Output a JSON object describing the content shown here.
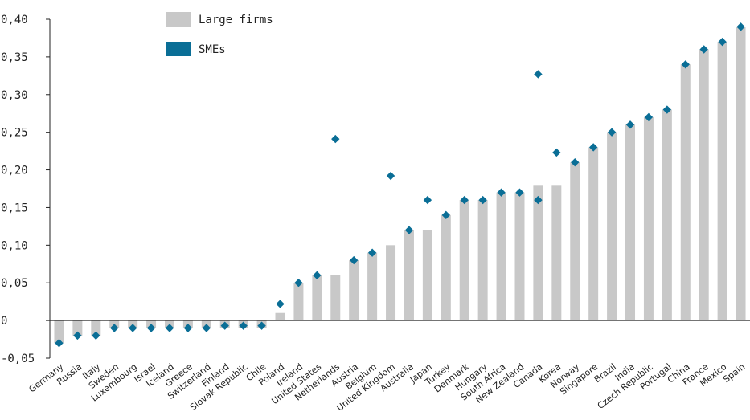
{
  "chart_data": {
    "type": "bar",
    "categories": [
      "Germany",
      "Russia",
      "Italy",
      "Sweden",
      "Luxembourg",
      "Israel",
      "Iceland",
      "Greece",
      "Switzerland",
      "Finland",
      "Slovak Republic",
      "Chile",
      "Poland",
      "Ireland",
      "United States",
      "Netherlands",
      "Austria",
      "Belgium",
      "United Kingdom",
      "Australia",
      "Japan",
      "Turkey",
      "Denmark",
      "Hungary",
      "South Africa",
      "New Zealand",
      "Canada",
      "Korea",
      "Norway",
      "Singapore",
      "Brazil",
      "India",
      "Czech Republic",
      "Portugal",
      "China",
      "France",
      "Mexico",
      "Spain"
    ],
    "series": [
      {
        "name": "Large firms",
        "mark": "bar",
        "color": "#c8c8c8",
        "values": [
          -0.03,
          -0.02,
          -0.02,
          -0.01,
          -0.01,
          -0.01,
          -0.01,
          -0.01,
          -0.01,
          -0.01,
          -0.01,
          -0.01,
          0.01,
          0.05,
          0.06,
          0.06,
          0.08,
          0.09,
          0.1,
          0.12,
          0.12,
          0.14,
          0.16,
          0.16,
          0.17,
          0.17,
          0.18,
          0.18,
          0.21,
          0.23,
          0.25,
          0.26,
          0.27,
          0.28,
          0.34,
          0.36,
          0.37,
          0.39
        ]
      },
      {
        "name": "SMEs",
        "mark": "diamond",
        "color": "#0a6e96",
        "values": [
          -0.03,
          -0.02,
          -0.02,
          -0.01,
          -0.01,
          -0.01,
          -0.01,
          -0.01,
          -0.01,
          -0.007,
          -0.007,
          -0.007,
          0.022,
          0.05,
          0.06,
          0.241,
          0.08,
          0.09,
          0.192,
          0.12,
          0.16,
          0.14,
          0.16,
          0.16,
          0.17,
          0.17,
          0.327,
          0.223,
          0.21,
          0.23,
          0.25,
          0.26,
          0.27,
          0.28,
          0.34,
          0.36,
          0.37,
          0.39
        ]
      }
    ],
    "extra_canada_sme_marker": 0.16,
    "ylim": [
      -0.05,
      0.4
    ],
    "yticks": [
      "-0,05",
      "0",
      "0,05",
      "0,10",
      "0,15",
      "0,20",
      "0,25",
      "0,30",
      "0,35",
      "0,40"
    ],
    "ytick_values": [
      -0.05,
      0,
      0.05,
      0.1,
      0.15,
      0.2,
      0.25,
      0.3,
      0.35,
      0.4
    ],
    "grid": false,
    "legend_position": "top-left",
    "title": "",
    "xlabel": "",
    "ylabel": ""
  }
}
